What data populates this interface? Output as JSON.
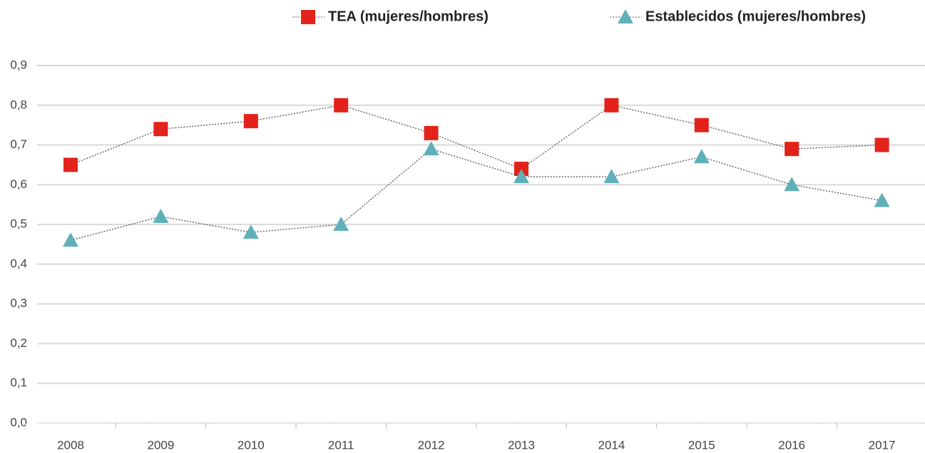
{
  "chart_data": {
    "type": "line",
    "categories": [
      "2008",
      "2009",
      "2010",
      "2011",
      "2012",
      "2013",
      "2014",
      "2015",
      "2016",
      "2017"
    ],
    "series": [
      {
        "name": "TEA (mujeres/hombres)",
        "color": "#e3231b",
        "marker": "square",
        "values": [
          0.65,
          0.74,
          0.76,
          0.8,
          0.73,
          0.64,
          0.8,
          0.75,
          0.69,
          0.7
        ]
      },
      {
        "name": "Establecidos (mujeres/hombres)",
        "color": "#5fb0b8",
        "marker": "triangle",
        "values": [
          0.46,
          0.52,
          0.48,
          0.5,
          0.69,
          0.62,
          0.62,
          0.67,
          0.6,
          0.56
        ]
      }
    ],
    "ylim": [
      0,
      0.9
    ],
    "yticks": [
      {
        "value": 0,
        "label": "0,0"
      },
      {
        "value": 0.1,
        "label": "0,1"
      },
      {
        "value": 0.2,
        "label": "0,2"
      },
      {
        "value": 0.3,
        "label": "0,3"
      },
      {
        "value": 0.4,
        "label": "0,4"
      },
      {
        "value": 0.5,
        "label": "0,5"
      },
      {
        "value": 0.6,
        "label": "0,6"
      },
      {
        "value": 0.7,
        "label": "0,7"
      },
      {
        "value": 0.8,
        "label": "0,8"
      },
      {
        "value": 0.9,
        "label": "0,9"
      }
    ],
    "grid": true,
    "legend": "top-right"
  }
}
